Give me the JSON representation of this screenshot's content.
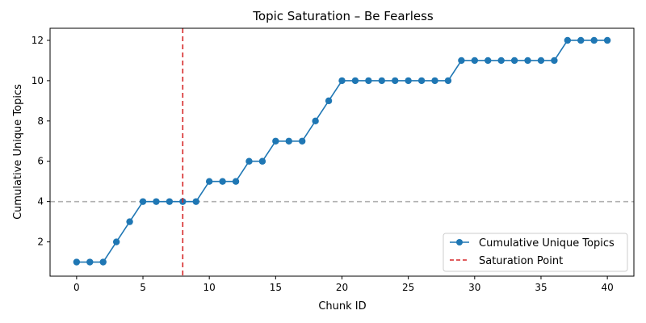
{
  "chart_data": {
    "type": "line",
    "title": "Topic Saturation – Be Fearless",
    "xlabel": "Chunk ID",
    "ylabel": "Cumulative Unique Topics",
    "xlim": [
      -2,
      42
    ],
    "ylim": [
      0.3,
      12.6
    ],
    "x_ticks": [
      0,
      5,
      10,
      15,
      20,
      25,
      30,
      35,
      40
    ],
    "y_ticks": [
      2,
      4,
      6,
      8,
      10,
      12
    ],
    "x": [
      0,
      1,
      2,
      3,
      4,
      5,
      6,
      7,
      8,
      9,
      10,
      11,
      12,
      13,
      14,
      15,
      16,
      17,
      18,
      19,
      20,
      21,
      22,
      23,
      24,
      25,
      26,
      27,
      28,
      29,
      30,
      31,
      32,
      33,
      34,
      35,
      36,
      37,
      38,
      39,
      40
    ],
    "series": [
      {
        "name": "Cumulative Unique Topics",
        "color": "#1f77b4",
        "marker": "circle",
        "values": [
          1,
          1,
          1,
          2,
          3,
          4,
          4,
          4,
          4,
          4,
          5,
          5,
          5,
          6,
          6,
          7,
          7,
          7,
          8,
          9,
          10,
          10,
          10,
          10,
          10,
          10,
          10,
          10,
          10,
          11,
          11,
          11,
          11,
          11,
          11,
          11,
          11,
          12,
          12,
          12,
          12
        ]
      }
    ],
    "vertical_line": {
      "name": "Saturation Point",
      "x": 8,
      "color": "#d62728",
      "style": "dashed"
    },
    "horizontal_line": {
      "y": 4,
      "color": "#b0b0b0",
      "style": "dashed"
    },
    "grid": false,
    "legend_position": "lower-right"
  }
}
